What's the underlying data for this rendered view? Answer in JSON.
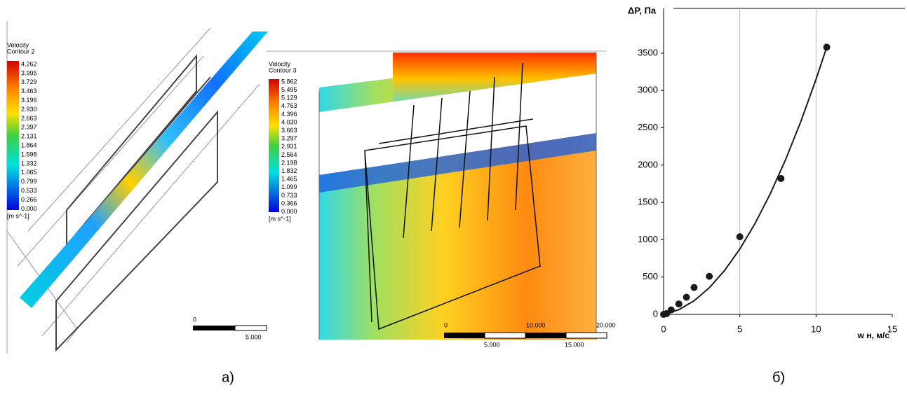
{
  "panels": [
    {
      "title": "Velocity",
      "subtitle": "Contour 2",
      "legend": [
        "4.262",
        "3.995",
        "3.729",
        "3.463",
        "3.196",
        "2.930",
        "2.663",
        "2.397",
        "2.131",
        "1.864",
        "1.598",
        "1.332",
        "1.065",
        "0.799",
        "0.533",
        "0.266",
        "0.000"
      ],
      "unit": "[m s^-1]",
      "scale": [
        "0",
        "5.000"
      ]
    },
    {
      "title": "Velocity",
      "subtitle": "Contour 3",
      "legend": [
        "5.862",
        "5.495",
        "5.129",
        "4.763",
        "4.396",
        "4.030",
        "3.663",
        "3.297",
        "2.931",
        "2.564",
        "2.198",
        "1.832",
        "1.465",
        "1.099",
        "0.733",
        "0.366",
        "0.000"
      ],
      "unit": "[m s^-1]",
      "scale": [
        "0",
        "10.000",
        "20.000",
        "5.000",
        "15.000"
      ]
    }
  ],
  "captions": [
    "а)",
    "б)"
  ],
  "chart_data": {
    "type": "scatter",
    "y_label": "ΔP, Па",
    "x_label": "w н, м/с",
    "series": [
      {
        "type": "scatter",
        "color": "#1a1a1a",
        "x": [
          0,
          0.2,
          0.5,
          1,
          1.5,
          2,
          3,
          5,
          7.7,
          10.7
        ],
        "values": [
          0,
          10,
          60,
          140,
          230,
          360,
          510,
          1040,
          1820,
          3580
        ]
      },
      {
        "type": "line",
        "color": "#1a1a1a",
        "x": [
          0,
          1,
          2,
          3,
          4,
          5,
          6,
          7,
          8,
          9,
          10,
          10.7
        ],
        "values": [
          0,
          63,
          182,
          357,
          588,
          875,
          1218,
          1617,
          2072,
          2583,
          3150,
          3580
        ]
      }
    ],
    "xlim": [
      0,
      15
    ],
    "ylim": [
      0,
      4100
    ],
    "xticks": [
      0,
      5,
      10,
      15
    ],
    "yticks": [
      0,
      500,
      1000,
      1500,
      2000,
      2500,
      3000,
      3500
    ],
    "grid": "x"
  }
}
